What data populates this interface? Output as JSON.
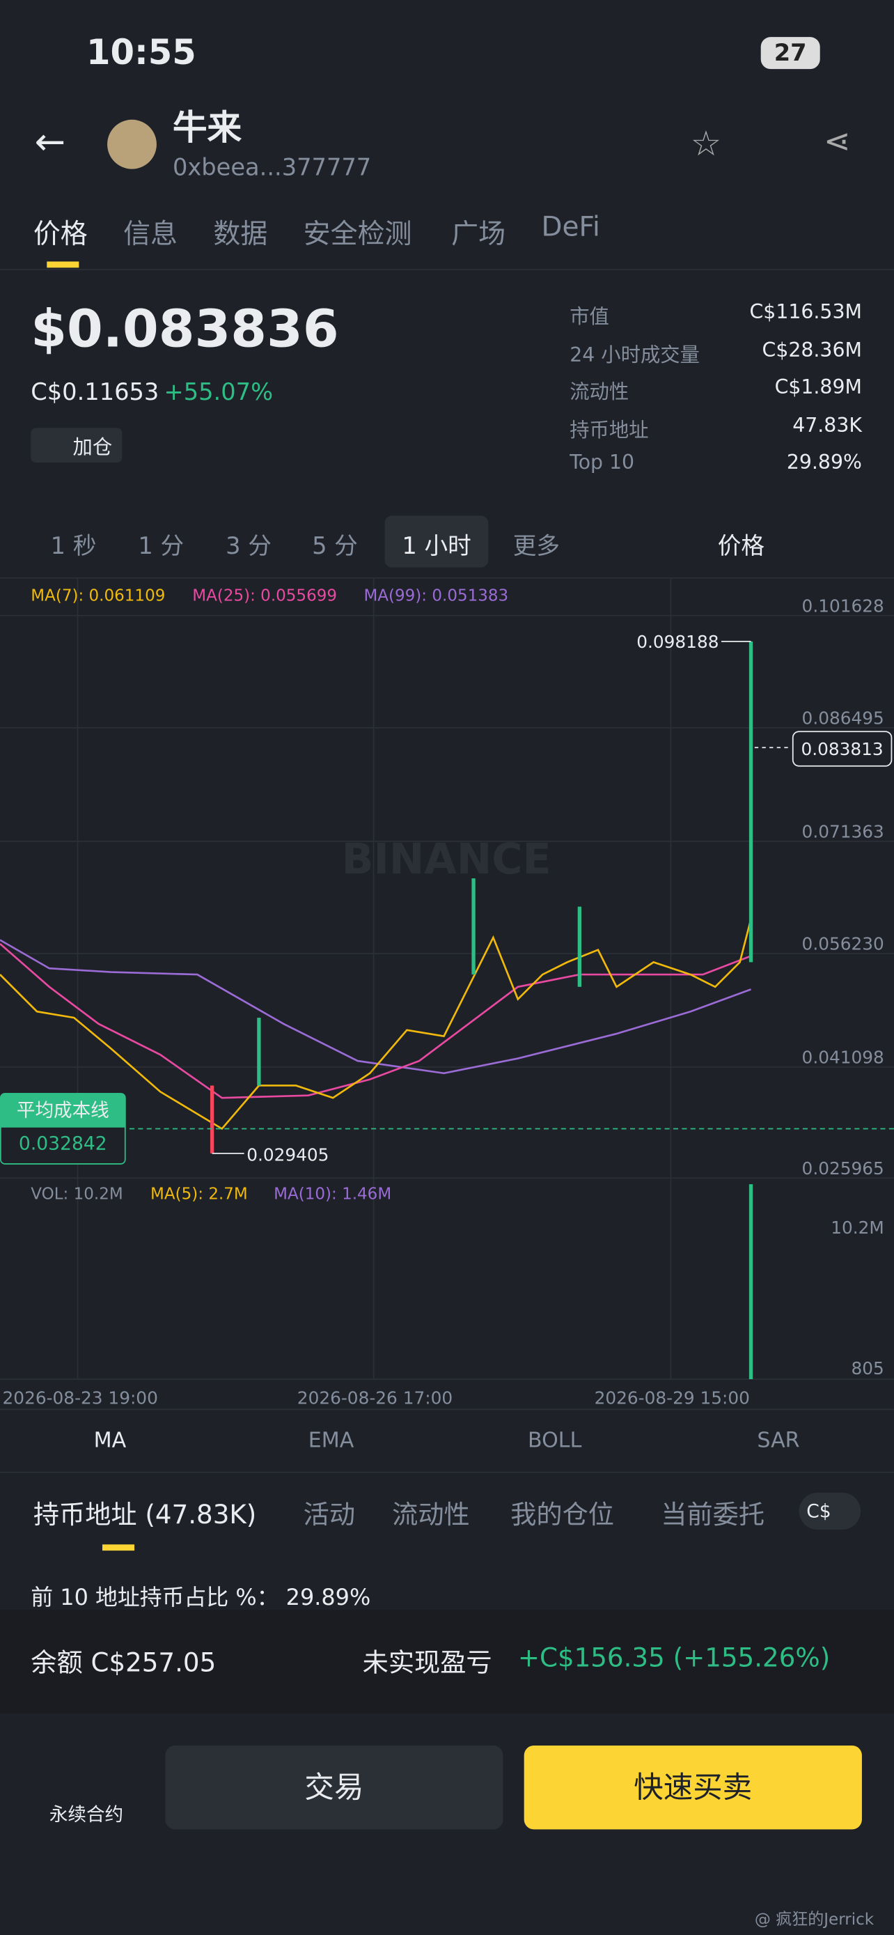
{
  "status_bar": {
    "time": "10:55",
    "battery": "27"
  },
  "header": {
    "name": "牛来",
    "address": "0xbeea...377777"
  },
  "tabs": [
    "价格",
    "信息",
    "数据",
    "安全检测",
    "广场",
    "DeFi"
  ],
  "price": {
    "usd": "$0.083836",
    "cad": "C$0.11653",
    "change": "+55.07%",
    "add_position": "加仓"
  },
  "stats": [
    {
      "label": "市值",
      "value": "C$116.53M"
    },
    {
      "label": "24 小时成交量",
      "value": "C$28.36M"
    },
    {
      "label": "流动性",
      "value": "C$1.89M"
    },
    {
      "label": "持币地址",
      "value": "47.83K"
    },
    {
      "label": "Top 10",
      "value": "29.89%"
    }
  ],
  "intervals": [
    "1 秒",
    "1 分",
    "3 分",
    "5 分",
    "1 小时",
    "更多"
  ],
  "price_selector": "价格",
  "ma_legend": [
    "MA(7): 0.061109",
    "MA(25): 0.055699",
    "MA(99): 0.051383"
  ],
  "price_axis": [
    "0.101628",
    "0.086495",
    "0.071363",
    "0.056230",
    "0.041098",
    "0.025965"
  ],
  "high_label": "0.098188",
  "current_price": "0.083813",
  "low_label": "0.029405",
  "avg_cost": {
    "label": "平均成本线",
    "value": "0.032842"
  },
  "watermark": "BINANCE",
  "volume_legend": [
    "VOL: 10.2M",
    "MA(5): 2.7M",
    "MA(10): 1.46M"
  ],
  "volume_axis": [
    "10.2M",
    "805"
  ],
  "dates": [
    "2026-08-23 19:00",
    "2026-08-26 17:00",
    "2026-08-29 15:00"
  ],
  "indicators": [
    "MA",
    "EMA",
    "BOLL",
    "SAR"
  ],
  "bottom_tabs": [
    "持币地址 (47.83K)",
    "活动",
    "流动性",
    "我的仓位",
    "当前委托"
  ],
  "currency": "C$",
  "holder_share": "前 10 地址持币占比 %： 29.89%",
  "balance": {
    "label": "余额 C$257.05",
    "pnl_label": "未实现盈亏",
    "pnl": "+C$156.35 (+155.26%)"
  },
  "actions": {
    "perp": "永续合约",
    "trade": "交易",
    "quick": "快速买卖"
  },
  "credit": "@ 疯狂的Jerrick"
}
